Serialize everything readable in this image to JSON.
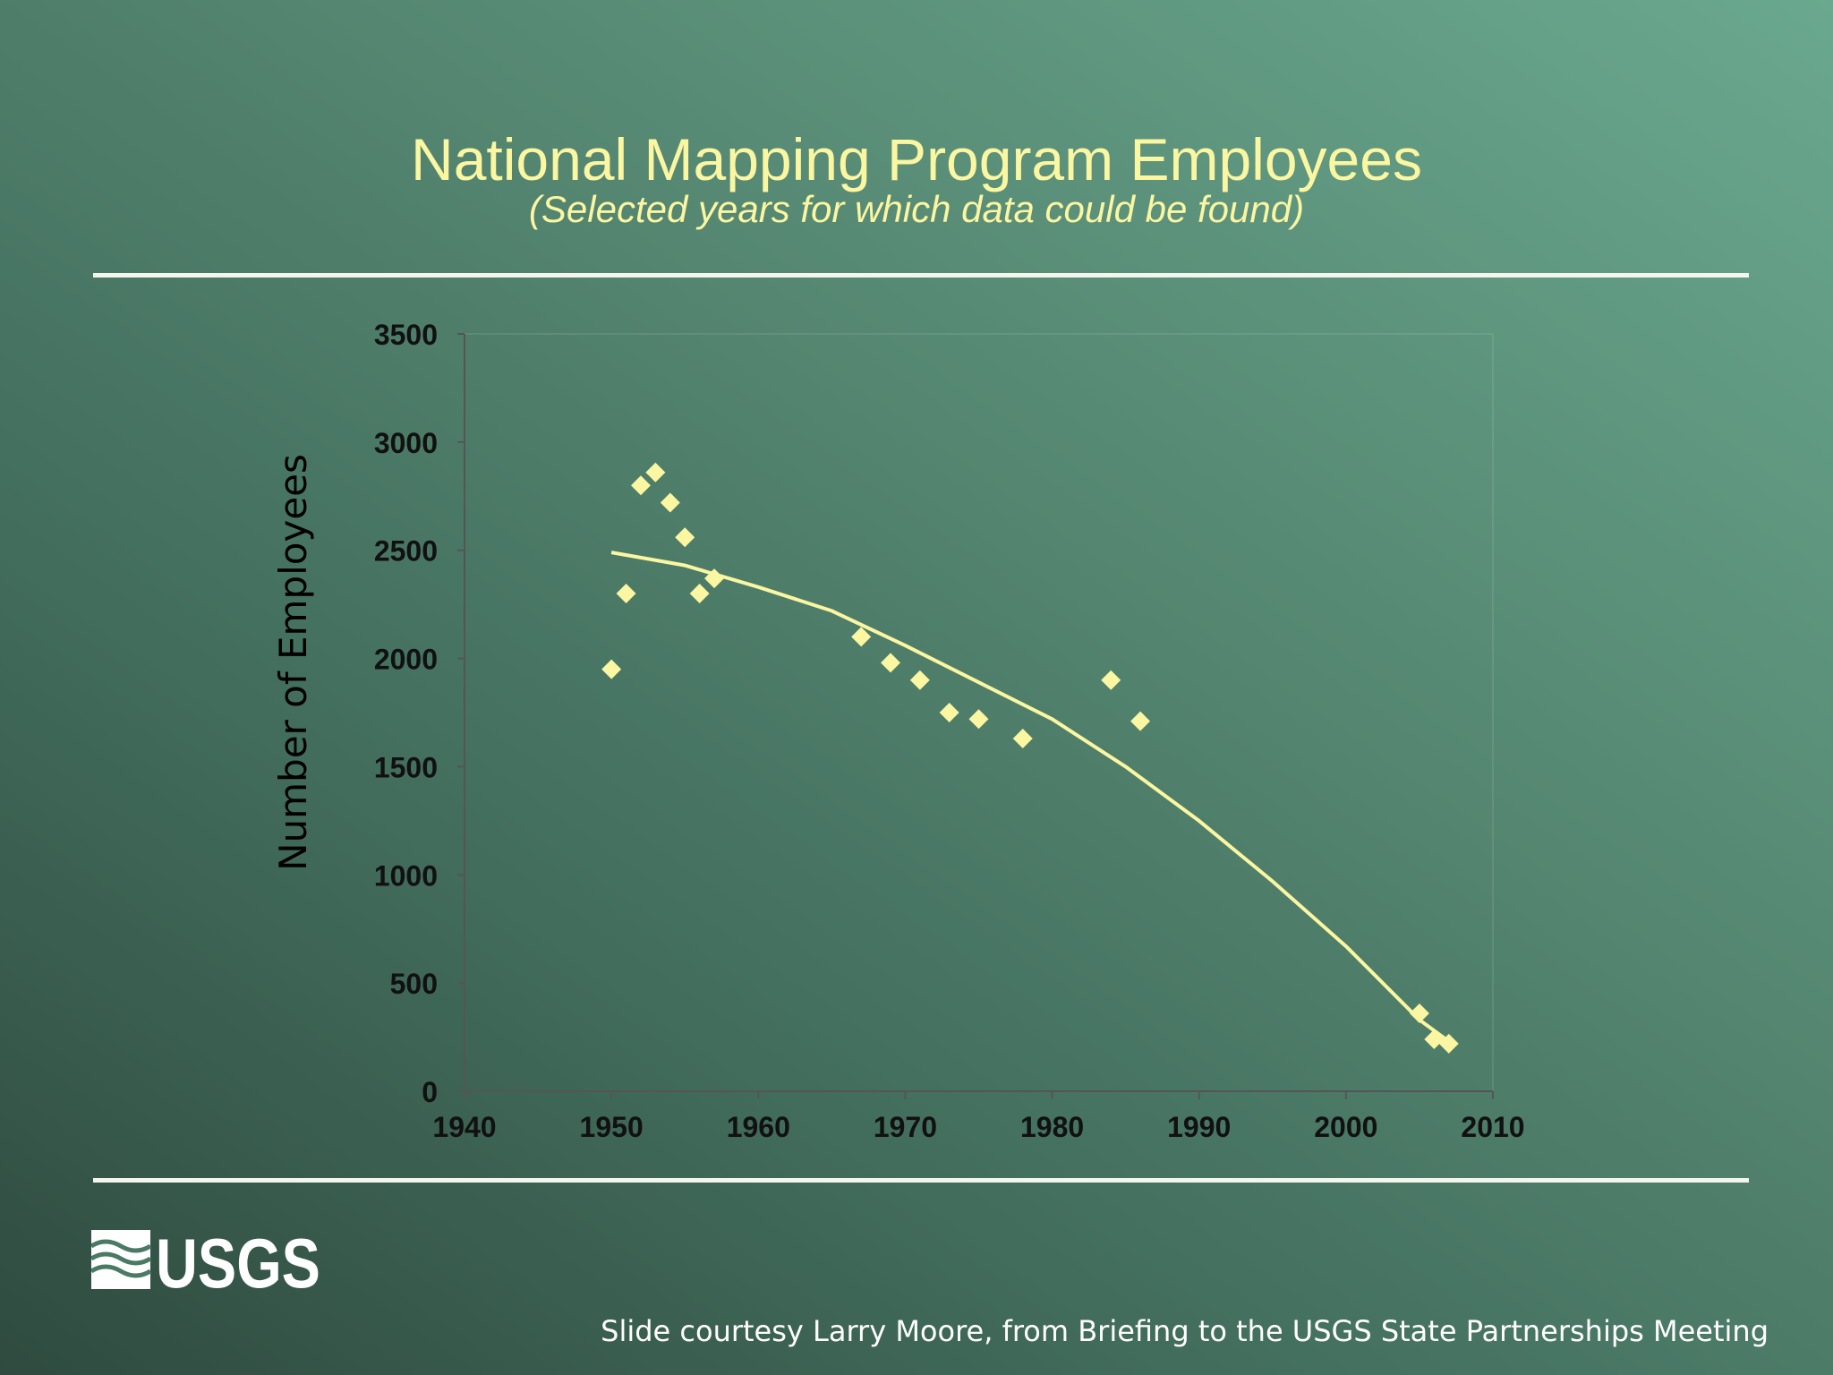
{
  "slide": {
    "title": "National Mapping Program Employees",
    "subtitle": "(Selected years for which data could be found)",
    "logo_text": "USGS",
    "credit": "Slide courtesy Larry Moore, from Briefing to the USGS State Partnerships Meeting"
  },
  "colors": {
    "accent": "#fbf6a1",
    "rule": "#f4f6ee",
    "axis_text": "#111111"
  },
  "chart_data": {
    "type": "scatter",
    "title": "",
    "xlabel": "",
    "ylabel": "Number of Employees",
    "xlim": [
      1940,
      2010
    ],
    "ylim": [
      0,
      3500
    ],
    "x_ticks": [
      1940,
      1950,
      1960,
      1970,
      1980,
      1990,
      2000,
      2010
    ],
    "y_ticks": [
      0,
      500,
      1000,
      1500,
      2000,
      2500,
      3000,
      3500
    ],
    "grid": false,
    "legend": "none",
    "series": [
      {
        "marker": "diamond",
        "points": [
          {
            "x": 1950,
            "y": 1950
          },
          {
            "x": 1951,
            "y": 2300
          },
          {
            "x": 1952,
            "y": 2800
          },
          {
            "x": 1953,
            "y": 2860
          },
          {
            "x": 1954,
            "y": 2720
          },
          {
            "x": 1955,
            "y": 2560
          },
          {
            "x": 1956,
            "y": 2300
          },
          {
            "x": 1957,
            "y": 2370
          },
          {
            "x": 1967,
            "y": 2100
          },
          {
            "x": 1969,
            "y": 1980
          },
          {
            "x": 1971,
            "y": 1900
          },
          {
            "x": 1973,
            "y": 1750
          },
          {
            "x": 1975,
            "y": 1720
          },
          {
            "x": 1978,
            "y": 1630
          },
          {
            "x": 1984,
            "y": 1900
          },
          {
            "x": 1986,
            "y": 1710
          },
          {
            "x": 2005,
            "y": 360
          },
          {
            "x": 2006,
            "y": 240
          },
          {
            "x": 2007,
            "y": 220
          }
        ]
      }
    ],
    "trendline": {
      "type": "polynomial",
      "points": [
        {
          "x": 1950,
          "y": 2490
        },
        {
          "x": 1955,
          "y": 2430
        },
        {
          "x": 1960,
          "y": 2330
        },
        {
          "x": 1965,
          "y": 2220
        },
        {
          "x": 1970,
          "y": 2060
        },
        {
          "x": 1975,
          "y": 1890
        },
        {
          "x": 1980,
          "y": 1720
        },
        {
          "x": 1985,
          "y": 1500
        },
        {
          "x": 1990,
          "y": 1250
        },
        {
          "x": 1995,
          "y": 970
        },
        {
          "x": 2000,
          "y": 670
        },
        {
          "x": 2005,
          "y": 330
        },
        {
          "x": 2007,
          "y": 230
        }
      ]
    }
  }
}
